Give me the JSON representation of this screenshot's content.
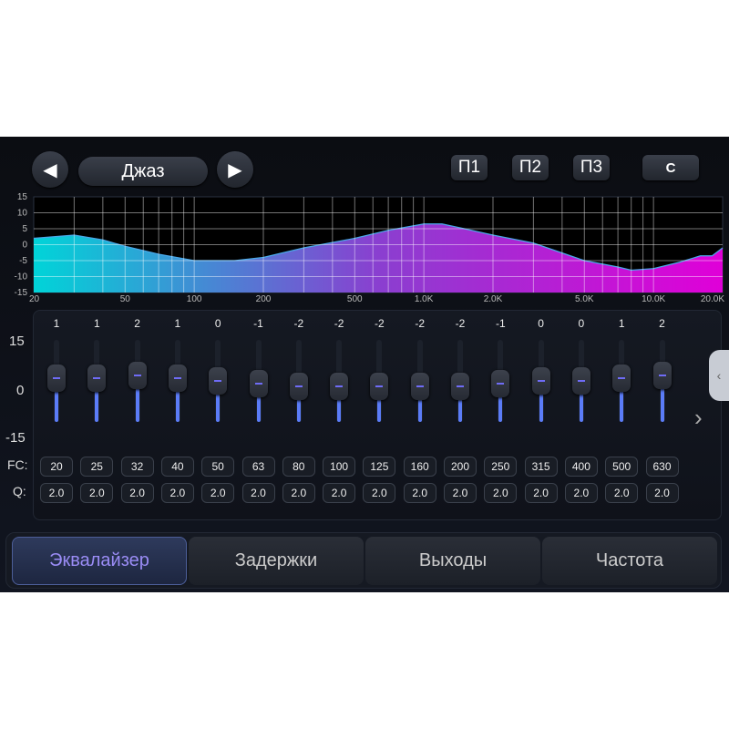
{
  "header": {
    "preset_name": "Джаз",
    "prev_icon": "triangle-left",
    "next_icon": "triangle-right",
    "presets": [
      "П1",
      "П2",
      "П3"
    ],
    "reset_label": "C"
  },
  "chart_data": {
    "type": "area",
    "x_scale": "log",
    "xlim": [
      20,
      20000
    ],
    "ylim": [
      -15,
      15
    ],
    "y_ticks": [
      "15",
      "10",
      "5",
      "0",
      "-5",
      "-10",
      "-15"
    ],
    "x_tick_labels": [
      {
        "v": 20,
        "t": "20"
      },
      {
        "v": 50,
        "t": "50"
      },
      {
        "v": 100,
        "t": "100"
      },
      {
        "v": 200,
        "t": "200"
      },
      {
        "v": 500,
        "t": "500"
      },
      {
        "v": 1000,
        "t": "1.0K"
      },
      {
        "v": 2000,
        "t": "2.0K"
      },
      {
        "v": 5000,
        "t": "5.0K"
      },
      {
        "v": 10000,
        "t": "10.0K"
      },
      {
        "v": 20000,
        "t": "20.0K"
      }
    ],
    "grid": true,
    "gradient": [
      "#00d4d8",
      "#8a3fd0",
      "#e000d8"
    ],
    "points": [
      [
        20,
        2
      ],
      [
        30,
        3
      ],
      [
        40,
        1.5
      ],
      [
        50,
        -0.5
      ],
      [
        70,
        -3
      ],
      [
        100,
        -5
      ],
      [
        150,
        -5
      ],
      [
        200,
        -4
      ],
      [
        300,
        -1
      ],
      [
        500,
        2
      ],
      [
        700,
        4.5
      ],
      [
        1000,
        6.5
      ],
      [
        1200,
        6.5
      ],
      [
        1500,
        5
      ],
      [
        2000,
        3
      ],
      [
        3000,
        0.5
      ],
      [
        5000,
        -5
      ],
      [
        7000,
        -7
      ],
      [
        8000,
        -8
      ],
      [
        10000,
        -7.5
      ],
      [
        13000,
        -5.5
      ],
      [
        16000,
        -3.5
      ],
      [
        18000,
        -3.5
      ],
      [
        20000,
        -1
      ]
    ]
  },
  "eq": {
    "scale": {
      "max": "15",
      "zero": "0",
      "min": "-15"
    },
    "fc_label": "FC:",
    "q_label": "Q:",
    "bands": [
      {
        "gain": "1",
        "fc": "20",
        "q": "2.0"
      },
      {
        "gain": "1",
        "fc": "25",
        "q": "2.0"
      },
      {
        "gain": "2",
        "fc": "32",
        "q": "2.0"
      },
      {
        "gain": "1",
        "fc": "40",
        "q": "2.0"
      },
      {
        "gain": "0",
        "fc": "50",
        "q": "2.0"
      },
      {
        "gain": "-1",
        "fc": "63",
        "q": "2.0"
      },
      {
        "gain": "-2",
        "fc": "80",
        "q": "2.0"
      },
      {
        "gain": "-2",
        "fc": "100",
        "q": "2.0"
      },
      {
        "gain": "-2",
        "fc": "125",
        "q": "2.0"
      },
      {
        "gain": "-2",
        "fc": "160",
        "q": "2.0"
      },
      {
        "gain": "-2",
        "fc": "200",
        "q": "2.0"
      },
      {
        "gain": "-1",
        "fc": "250",
        "q": "2.0"
      },
      {
        "gain": "0",
        "fc": "315",
        "q": "2.0"
      },
      {
        "gain": "0",
        "fc": "400",
        "q": "2.0"
      },
      {
        "gain": "1",
        "fc": "500",
        "q": "2.0"
      },
      {
        "gain": "2",
        "fc": "630",
        "q": "2.0"
      }
    ],
    "next_page_icon": "chevron-right"
  },
  "tabs": [
    {
      "label": "Эквалайзер",
      "active": true
    },
    {
      "label": "Задержки"
    },
    {
      "label": "Выходы"
    },
    {
      "label": "Частота"
    }
  ],
  "side_handle_icon": "chevron-left"
}
